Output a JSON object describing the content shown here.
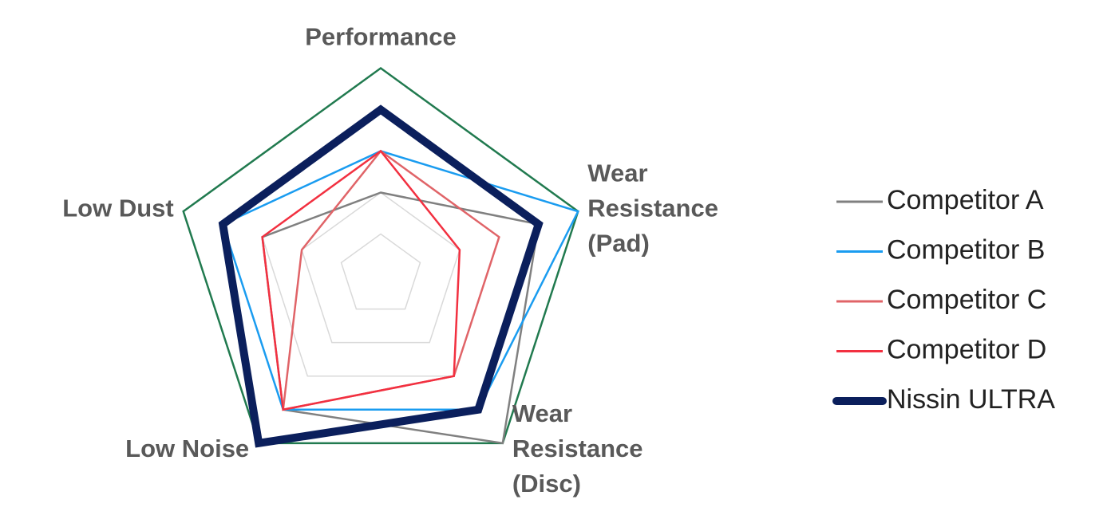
{
  "chart_data": {
    "type": "radar",
    "categories": [
      [
        "Performance"
      ],
      [
        "Wear",
        "Resistance",
        "(Pad)"
      ],
      [
        "Wear",
        "Resistance",
        "(Disc)"
      ],
      [
        "Low Noise"
      ],
      [
        "Low Dust"
      ]
    ],
    "ylim": [
      0,
      5
    ],
    "yticks": [
      1,
      2,
      3,
      4,
      5
    ],
    "grid_color": "#d9d9d9",
    "outer_ring_color": "#217a4f",
    "legend": "right",
    "series": [
      {
        "name": "Competitor A",
        "color": "#808080",
        "values": [
          2,
          4,
          5,
          4,
          3
        ]
      },
      {
        "name": "Competitor B",
        "color": "#1a9cf0",
        "values": [
          3,
          5,
          4,
          4,
          4
        ]
      },
      {
        "name": "Competitor C",
        "color": "#e06468",
        "values": [
          3,
          3,
          3,
          4,
          2
        ]
      },
      {
        "name": "Competitor D",
        "color": "#f23040",
        "values": [
          3,
          2,
          3,
          4,
          3
        ]
      },
      {
        "name": "Nissin ULTRA",
        "color": "#0b1f5c",
        "values": [
          4,
          4,
          4,
          5,
          4
        ],
        "width": 10
      }
    ]
  }
}
